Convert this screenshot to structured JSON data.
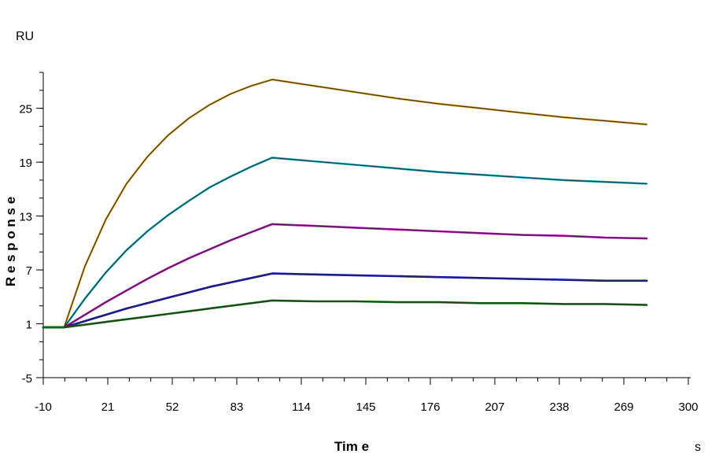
{
  "chart_data": {
    "type": "line",
    "title": "",
    "xlabel": "Tim e",
    "ylabel": "R e s p o n s e",
    "x_unit": "s",
    "y_unit": "RU",
    "xlim": [
      -10,
      300
    ],
    "ylim": [
      -5,
      29
    ],
    "x_ticks": [
      -10,
      21,
      52,
      83,
      114,
      145,
      176,
      207,
      238,
      269,
      300
    ],
    "y_ticks": [
      -5,
      1,
      7,
      13,
      19,
      25
    ],
    "x_minor_step": 10.33,
    "y_minor_step": 2,
    "grid": false,
    "legend": "none",
    "fit_color": "#333333",
    "series": [
      {
        "color": "#e8a317",
        "x": [
          -10,
          0,
          10,
          20,
          30,
          40,
          50,
          60,
          70,
          80,
          90,
          100,
          120,
          140,
          160,
          180,
          200,
          220,
          240,
          260,
          280
        ],
        "y": [
          0.6,
          0.6,
          7.4,
          12.6,
          16.6,
          19.6,
          22.0,
          23.9,
          25.4,
          26.6,
          27.5,
          28.2,
          27.5,
          26.8,
          26.1,
          25.5,
          25.0,
          24.5,
          24.0,
          23.6,
          23.2
        ]
      },
      {
        "color": "#00b3c7",
        "x": [
          -10,
          0,
          10,
          20,
          30,
          40,
          50,
          60,
          70,
          80,
          90,
          100,
          120,
          140,
          160,
          180,
          200,
          220,
          240,
          260,
          280
        ],
        "y": [
          0.6,
          0.6,
          3.8,
          6.7,
          9.2,
          11.3,
          13.1,
          14.7,
          16.2,
          17.4,
          18.5,
          19.5,
          19.1,
          18.7,
          18.3,
          17.9,
          17.6,
          17.3,
          17.0,
          16.8,
          16.6
        ]
      },
      {
        "color": "#c000c0",
        "x": [
          -10,
          0,
          10,
          20,
          30,
          40,
          50,
          60,
          70,
          80,
          90,
          100,
          120,
          140,
          160,
          180,
          200,
          220,
          240,
          260,
          280
        ],
        "y": [
          0.6,
          0.6,
          2.0,
          3.4,
          4.7,
          6.0,
          7.2,
          8.3,
          9.3,
          10.3,
          11.2,
          12.1,
          11.9,
          11.7,
          11.5,
          11.3,
          11.1,
          10.9,
          10.8,
          10.6,
          10.5
        ]
      },
      {
        "color": "#0000cc",
        "x": [
          -10,
          0,
          10,
          20,
          30,
          40,
          50,
          60,
          70,
          80,
          90,
          100,
          120,
          140,
          160,
          180,
          200,
          220,
          240,
          260,
          280
        ],
        "y": [
          0.6,
          0.6,
          1.3,
          2.0,
          2.7,
          3.3,
          3.9,
          4.5,
          5.1,
          5.6,
          6.1,
          6.6,
          6.5,
          6.4,
          6.3,
          6.2,
          6.1,
          6.0,
          5.9,
          5.8,
          5.8
        ]
      },
      {
        "color": "#007000",
        "x": [
          -10,
          0,
          10,
          20,
          30,
          40,
          50,
          60,
          70,
          80,
          90,
          100,
          120,
          140,
          160,
          180,
          200,
          220,
          240,
          260,
          280
        ],
        "y": [
          0.6,
          0.6,
          0.9,
          1.2,
          1.5,
          1.8,
          2.1,
          2.4,
          2.7,
          3.0,
          3.3,
          3.6,
          3.5,
          3.5,
          3.4,
          3.4,
          3.3,
          3.3,
          3.2,
          3.2,
          3.1
        ]
      }
    ]
  }
}
